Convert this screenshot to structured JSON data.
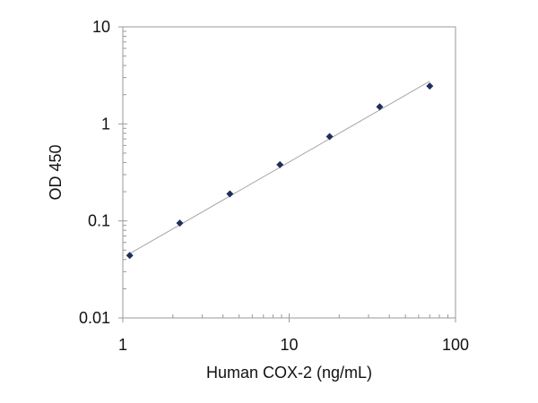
{
  "chart_data": {
    "type": "scatter",
    "title": "",
    "xlabel": "Human COX-2 (ng/mL)",
    "ylabel": "OD 450",
    "x_scale": "log",
    "y_scale": "log",
    "xlim": [
      1,
      100
    ],
    "ylim": [
      0.01,
      10
    ],
    "x_ticks": [
      "1",
      "10",
      "100"
    ],
    "y_ticks": [
      "10",
      "1",
      "0.1",
      "0.01"
    ],
    "grid": false,
    "legend": "none",
    "series": [
      {
        "x": [
          1.1,
          2.2,
          4.4,
          8.8,
          17.5,
          35,
          70
        ],
        "y": [
          0.044,
          0.095,
          0.19,
          0.38,
          0.74,
          1.5,
          2.45
        ]
      }
    ],
    "trendline": {
      "x": [
        1.1,
        70
      ],
      "y": [
        0.046,
        2.75
      ]
    },
    "colors": {
      "marker": "#1f2f5c",
      "trendline": "#a6a6a6",
      "axis": "#9a9a9a"
    }
  }
}
